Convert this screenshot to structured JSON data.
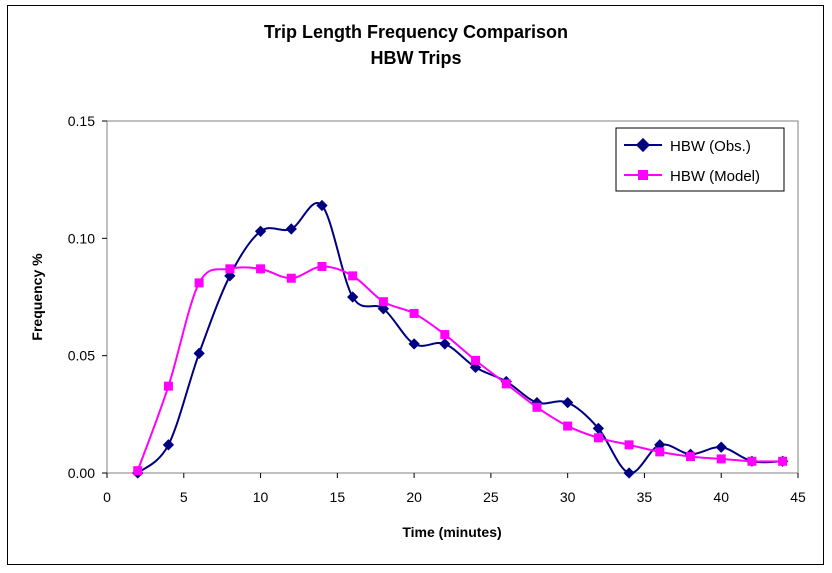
{
  "chart_data": {
    "type": "line",
    "title": "Trip Length Frequency Comparison",
    "subtitle": "HBW Trips",
    "xlabel": "Time (minutes)",
    "ylabel": "Frequency %",
    "xlim": [
      0,
      45
    ],
    "ylim": [
      0,
      0.15
    ],
    "x_ticks": [
      0,
      5,
      10,
      15,
      20,
      25,
      30,
      35,
      40,
      45
    ],
    "x_tick_labels": [
      "0",
      "5",
      "10",
      "15",
      "20",
      "25",
      "30",
      "35",
      "40",
      "45"
    ],
    "y_ticks": [
      0,
      0.05,
      0.1,
      0.15
    ],
    "y_tick_labels": [
      "0.00",
      "0.05",
      "0.10",
      "0.15"
    ],
    "grid": false,
    "legend_position": "top-right",
    "series": [
      {
        "name": "HBW (Obs.)",
        "color": "#000080",
        "marker": "diamond",
        "x": [
          2,
          4,
          6,
          8,
          10,
          12,
          14,
          16,
          18,
          20,
          22,
          24,
          26,
          28,
          30,
          32,
          34,
          36,
          38,
          40,
          42,
          44
        ],
        "values": [
          0.0,
          0.012,
          0.051,
          0.084,
          0.103,
          0.104,
          0.114,
          0.075,
          0.07,
          0.055,
          0.055,
          0.045,
          0.039,
          0.03,
          0.03,
          0.019,
          0.0,
          0.012,
          0.008,
          0.011,
          0.005,
          0.005
        ]
      },
      {
        "name": "HBW (Model)",
        "color": "#FF00FF",
        "marker": "square",
        "x": [
          2,
          4,
          6,
          8,
          10,
          12,
          14,
          16,
          18,
          20,
          22,
          24,
          26,
          28,
          30,
          32,
          34,
          36,
          38,
          40,
          42,
          44
        ],
        "values": [
          0.001,
          0.037,
          0.081,
          0.087,
          0.087,
          0.083,
          0.088,
          0.084,
          0.073,
          0.068,
          0.059,
          0.048,
          0.038,
          0.028,
          0.02,
          0.015,
          0.012,
          0.009,
          0.007,
          0.006,
          0.005,
          0.005
        ]
      }
    ]
  }
}
